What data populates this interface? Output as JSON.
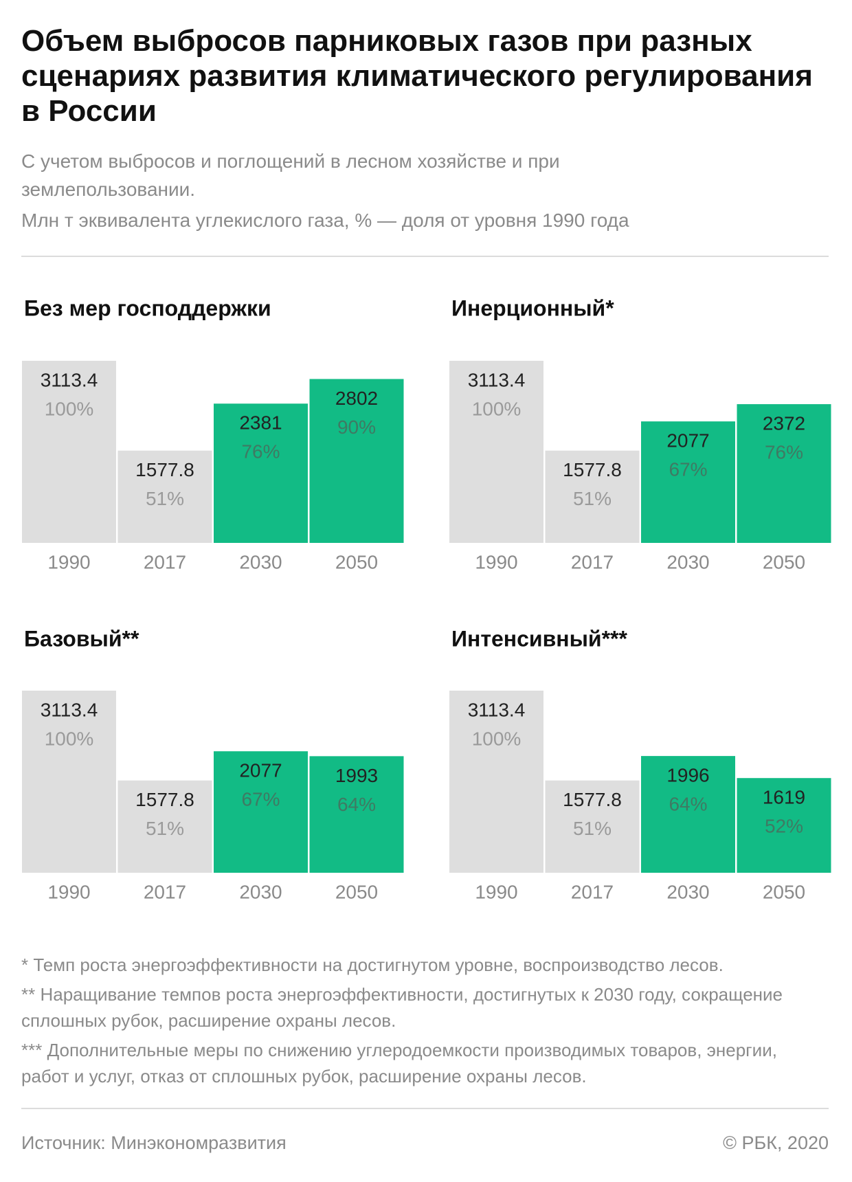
{
  "header": {
    "title": "Объем выбросов парниковых газов при разных сценариях развития климатического регулирования в России",
    "subtitle": "С учетом выбросов и поглощений в лесном хозяйстве и при землепользовании.",
    "units": "Млн т эквивалента углекислого газа, % — доля от уровня 1990 года"
  },
  "chart_data": [
    {
      "type": "bar",
      "title": "Без мер господдержки",
      "categories": [
        "1990",
        "2017",
        "2030",
        "2050"
      ],
      "values": [
        3113.4,
        1577.8,
        2381,
        2802
      ],
      "shares": [
        100,
        51,
        76,
        90
      ],
      "share_labels": [
        "100%",
        "51%",
        "76%",
        "90%"
      ],
      "colors": [
        "#dedede",
        "#dedede",
        "#12bb85",
        "#12bb85"
      ]
    },
    {
      "type": "bar",
      "title": "Инерционный*",
      "categories": [
        "1990",
        "2017",
        "2030",
        "2050"
      ],
      "values": [
        3113.4,
        1577.8,
        2077,
        2372
      ],
      "shares": [
        100,
        51,
        67,
        76
      ],
      "share_labels": [
        "100%",
        "51%",
        "67%",
        "76%"
      ],
      "colors": [
        "#dedede",
        "#dedede",
        "#12bb85",
        "#12bb85"
      ]
    },
    {
      "type": "bar",
      "title": "Базовый**",
      "categories": [
        "1990",
        "2017",
        "2030",
        "2050"
      ],
      "values": [
        3113.4,
        1577.8,
        2077,
        1993
      ],
      "shares": [
        100,
        51,
        67,
        64
      ],
      "share_labels": [
        "100%",
        "51%",
        "67%",
        "64%"
      ],
      "colors": [
        "#dedede",
        "#dedede",
        "#12bb85",
        "#12bb85"
      ]
    },
    {
      "type": "bar",
      "title": "Интенсивный***",
      "categories": [
        "1990",
        "2017",
        "2030",
        "2050"
      ],
      "values": [
        3113.4,
        1577.8,
        1996,
        1619
      ],
      "shares": [
        100,
        51,
        64,
        52
      ],
      "share_labels": [
        "100%",
        "51%",
        "64%",
        "52%"
      ],
      "colors": [
        "#dedede",
        "#dedede",
        "#12bb85",
        "#12bb85"
      ]
    }
  ],
  "footer": {
    "notes": [
      "* Темп роста энергоэффективности на достигнутом уровне, воспроизводство лесов.",
      "** Наращивание темпов роста энергоэффективности, достигнутых к 2030 году, сокращение сплошных рубок, расширение охраны лесов.",
      "*** Дополнительные меры по снижению углеродоемкости производимых товаров, энергии, работ и услуг, отказ от сплошных рубок, расширение охраны лесов."
    ],
    "source": "Источник: Минэкономразвития",
    "copyright": "© РБК, 2020"
  }
}
